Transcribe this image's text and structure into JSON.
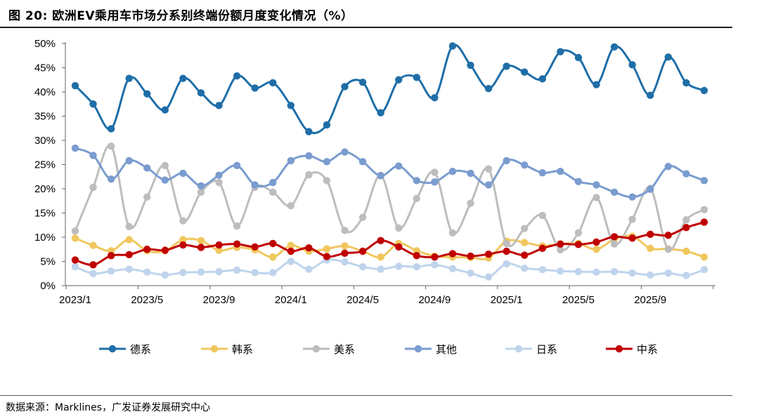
{
  "title": "图 20: 欧洲EV乘用车市场分系别终端份额月度变化情况（%）",
  "source": "数据来源：Marklines，广发证券发展研究中心",
  "chart_data": {
    "type": "line",
    "x_tick_labels": [
      "2023/1",
      "2023/5",
      "2023/9",
      "2024/1",
      "2024/5",
      "2024/9",
      "2025/1",
      "2025/5",
      "2025/9"
    ],
    "y_tick_labels": [
      "0%",
      "5%",
      "10%",
      "15%",
      "20%",
      "25%",
      "30%",
      "35%",
      "40%",
      "45%",
      "50%"
    ],
    "ylim": [
      0,
      50
    ],
    "unit": "%",
    "legend_position": "bottom",
    "categories": [
      "2023/1",
      "2023/2",
      "2023/3",
      "2023/4",
      "2023/5",
      "2023/6",
      "2023/7",
      "2023/8",
      "2023/9",
      "2023/10",
      "2023/11",
      "2023/12",
      "2024/1",
      "2024/2",
      "2024/3",
      "2024/4",
      "2024/5",
      "2024/6",
      "2024/7",
      "2024/8",
      "2024/9",
      "2024/10",
      "2024/11",
      "2024/12",
      "2025/1",
      "2025/2",
      "2025/3",
      "2025/4",
      "2025/5",
      "2025/6",
      "2025/7",
      "2025/8",
      "2025/9",
      "2025/10",
      "2025/11",
      "2025/12"
    ],
    "series": [
      {
        "name": "德系",
        "color": "#1f6ea8",
        "values": [
          41.3,
          37.5,
          32.4,
          42.8,
          39.6,
          36.3,
          42.8,
          39.8,
          37.2,
          43.3,
          40.8,
          41.9,
          37.2,
          31.8,
          33.2,
          41.1,
          42.0,
          35.7,
          42.5,
          43.0,
          38.8,
          49.5,
          45.5,
          40.7,
          45.3,
          44.1,
          42.7,
          48.3,
          47.1,
          41.5,
          49.3,
          45.6,
          39.3,
          47.2,
          41.9,
          40.3
        ]
      },
      {
        "name": "韩系",
        "color": "#f0c75e",
        "values": [
          9.8,
          8.3,
          7.2,
          9.5,
          7.2,
          7.2,
          9.5,
          9.3,
          7.3,
          7.9,
          7.4,
          5.9,
          8.3,
          7.1,
          7.6,
          8.2,
          7.1,
          5.9,
          8.7,
          7.2,
          6.1,
          5.9,
          5.8,
          5.7,
          9.2,
          8.9,
          8.2,
          8.6,
          8.7,
          7.5,
          9.6,
          10.2,
          7.7,
          7.6,
          7.1,
          5.9
        ]
      },
      {
        "name": "美系",
        "color": "#bdbdbd",
        "values": [
          11.3,
          20.3,
          28.8,
          12.2,
          18.3,
          24.8,
          13.4,
          19.3,
          21.3,
          12.3,
          20.3,
          19.3,
          16.5,
          22.9,
          21.7,
          11.4,
          14.1,
          22.8,
          11.9,
          18.0,
          23.4,
          10.9,
          17.0,
          24.1,
          8.7,
          11.8,
          14.5,
          7.4,
          10.9,
          18.2,
          8.6,
          13.7,
          20.1,
          7.5,
          13.6,
          15.7
        ]
      },
      {
        "name": "其他",
        "color": "#7a9ccf",
        "values": [
          28.4,
          26.9,
          22.0,
          25.8,
          24.3,
          21.8,
          23.2,
          20.6,
          22.8,
          24.8,
          20.8,
          21.3,
          25.8,
          26.8,
          25.6,
          27.6,
          25.6,
          22.7,
          24.7,
          21.7,
          21.4,
          23.6,
          23.2,
          20.8,
          25.8,
          24.9,
          23.3,
          23.6,
          21.5,
          20.8,
          19.3,
          18.3,
          19.9,
          24.6,
          23.1,
          21.7
        ]
      },
      {
        "name": "日系",
        "color": "#bfd4ec",
        "values": [
          3.9,
          2.5,
          3.0,
          3.4,
          2.8,
          2.2,
          2.7,
          2.8,
          2.9,
          3.2,
          2.7,
          2.7,
          5.0,
          3.4,
          5.3,
          4.9,
          3.9,
          3.4,
          4.0,
          3.9,
          4.3,
          3.5,
          2.6,
          1.8,
          4.5,
          3.6,
          3.3,
          3.0,
          2.9,
          2.8,
          2.9,
          2.6,
          2.2,
          2.6,
          2.1,
          3.3
        ]
      },
      {
        "name": "中系",
        "color": "#c00000",
        "values": [
          5.3,
          4.3,
          6.2,
          6.4,
          7.5,
          7.3,
          8.4,
          7.9,
          8.4,
          8.6,
          8.0,
          8.7,
          7.1,
          7.8,
          6.0,
          6.7,
          7.1,
          9.3,
          8.0,
          6.2,
          5.9,
          6.6,
          6.1,
          6.5,
          7.1,
          6.3,
          7.7,
          8.6,
          8.5,
          9.0,
          10.1,
          9.8,
          10.6,
          10.4,
          12.0,
          13.1
        ]
      }
    ]
  }
}
